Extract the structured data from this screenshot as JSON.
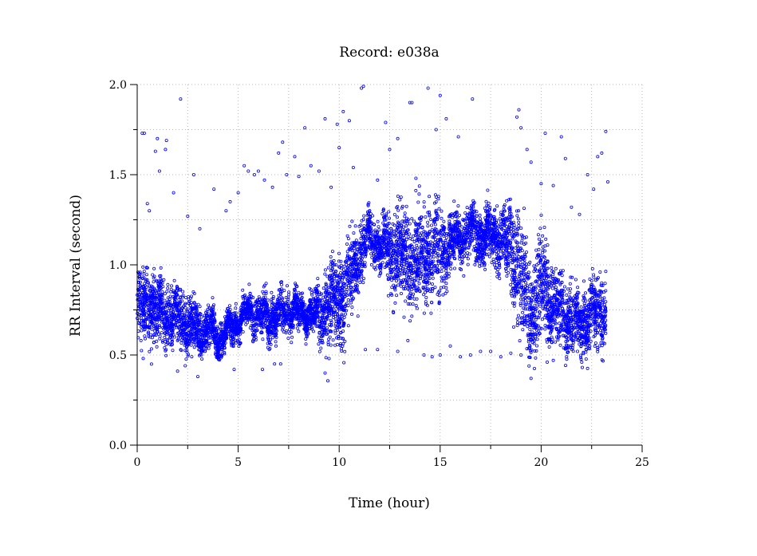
{
  "chart_data": {
    "type": "scatter",
    "title": "Record:  e038a",
    "xlabel": "Time (hour)",
    "ylabel": "RR Interval (second)",
    "xlim": [
      0,
      25
    ],
    "ylim": [
      0,
      2.0
    ],
    "xticks": [
      0,
      5,
      10,
      15,
      20,
      25
    ],
    "xtick_labels": [
      "0",
      "5",
      "10",
      "15",
      "20",
      "25"
    ],
    "yticks": [
      0.0,
      0.5,
      1.0,
      1.5,
      2.0
    ],
    "ytick_labels": [
      "0.0",
      "0.5",
      "1.0",
      "1.5",
      "2.0"
    ],
    "x_minor_ticks": [
      2.5,
      7.5,
      12.5,
      17.5,
      22.5
    ],
    "y_minor_ticks": [
      0.25,
      0.75,
      1.25,
      1.75
    ],
    "grid": true,
    "marker_color": "#0000ff",
    "series": [
      {
        "name": "",
        "trend": {
          "x": [
            0.0,
            0.5,
            1.0,
            1.5,
            2.0,
            2.5,
            3.0,
            3.5,
            4.0,
            4.5,
            5.0,
            5.5,
            6.0,
            6.5,
            7.0,
            7.5,
            8.0,
            8.5,
            9.0,
            9.5,
            10.0,
            10.5,
            11.0,
            11.5,
            12.0,
            12.5,
            13.0,
            13.5,
            14.0,
            14.5,
            15.0,
            15.5,
            16.0,
            16.5,
            17.0,
            17.5,
            18.0,
            18.5,
            19.0,
            19.5,
            20.0,
            20.5,
            21.0,
            21.5,
            22.0,
            22.5,
            23.0,
            23.2
          ],
          "center": [
            0.74,
            0.8,
            0.76,
            0.72,
            0.7,
            0.66,
            0.63,
            0.64,
            0.6,
            0.63,
            0.68,
            0.74,
            0.72,
            0.7,
            0.72,
            0.75,
            0.74,
            0.73,
            0.72,
            0.76,
            0.8,
            0.92,
            1.05,
            1.16,
            1.12,
            1.08,
            1.05,
            1.02,
            1.05,
            1.08,
            1.06,
            1.12,
            1.16,
            1.18,
            1.17,
            1.16,
            1.14,
            1.1,
            0.95,
            0.7,
            0.9,
            0.8,
            0.74,
            0.7,
            0.66,
            0.72,
            0.74,
            0.74
          ],
          "spread": [
            0.12,
            0.14,
            0.12,
            0.11,
            0.1,
            0.1,
            0.08,
            0.08,
            0.07,
            0.06,
            0.06,
            0.06,
            0.07,
            0.08,
            0.08,
            0.07,
            0.06,
            0.06,
            0.1,
            0.16,
            0.16,
            0.16,
            0.12,
            0.08,
            0.08,
            0.14,
            0.17,
            0.17,
            0.16,
            0.16,
            0.16,
            0.1,
            0.09,
            0.09,
            0.09,
            0.09,
            0.09,
            0.16,
            0.22,
            0.18,
            0.2,
            0.14,
            0.12,
            0.12,
            0.12,
            0.12,
            0.12,
            0.12
          ]
        },
        "outliers": [
          {
            "x": 0.25,
            "y": 1.73
          },
          {
            "x": 0.35,
            "y": 1.73
          },
          {
            "x": 0.6,
            "y": 1.3
          },
          {
            "x": 0.9,
            "y": 1.63
          },
          {
            "x": 1.0,
            "y": 1.7
          },
          {
            "x": 1.1,
            "y": 1.52
          },
          {
            "x": 1.4,
            "y": 1.64
          },
          {
            "x": 1.45,
            "y": 1.69
          },
          {
            "x": 2.15,
            "y": 1.92
          },
          {
            "x": 2.8,
            "y": 1.5
          },
          {
            "x": 1.8,
            "y": 1.4
          },
          {
            "x": 0.5,
            "y": 1.34
          },
          {
            "x": 2.5,
            "y": 1.27
          },
          {
            "x": 3.1,
            "y": 1.2
          },
          {
            "x": 3.8,
            "y": 1.42
          },
          {
            "x": 4.4,
            "y": 1.3
          },
          {
            "x": 4.6,
            "y": 1.35
          },
          {
            "x": 5.0,
            "y": 1.4
          },
          {
            "x": 5.3,
            "y": 1.55
          },
          {
            "x": 5.5,
            "y": 1.52
          },
          {
            "x": 5.8,
            "y": 1.5
          },
          {
            "x": 6.0,
            "y": 1.52
          },
          {
            "x": 6.3,
            "y": 1.47
          },
          {
            "x": 6.7,
            "y": 1.43
          },
          {
            "x": 7.0,
            "y": 1.62
          },
          {
            "x": 7.2,
            "y": 1.68
          },
          {
            "x": 7.4,
            "y": 1.5
          },
          {
            "x": 7.8,
            "y": 1.6
          },
          {
            "x": 8.0,
            "y": 1.49
          },
          {
            "x": 8.3,
            "y": 1.76
          },
          {
            "x": 8.6,
            "y": 1.55
          },
          {
            "x": 9.0,
            "y": 1.52
          },
          {
            "x": 9.3,
            "y": 1.81
          },
          {
            "x": 9.6,
            "y": 1.43
          },
          {
            "x": 9.9,
            "y": 1.78
          },
          {
            "x": 10.0,
            "y": 1.65
          },
          {
            "x": 10.2,
            "y": 1.85
          },
          {
            "x": 10.5,
            "y": 1.8
          },
          {
            "x": 10.7,
            "y": 1.54
          },
          {
            "x": 11.1,
            "y": 1.98
          },
          {
            "x": 11.2,
            "y": 1.99
          },
          {
            "x": 11.9,
            "y": 1.47
          },
          {
            "x": 12.3,
            "y": 1.79
          },
          {
            "x": 12.5,
            "y": 1.64
          },
          {
            "x": 12.9,
            "y": 1.7
          },
          {
            "x": 13.5,
            "y": 1.9
          },
          {
            "x": 13.6,
            "y": 1.9
          },
          {
            "x": 13.8,
            "y": 1.48
          },
          {
            "x": 14.4,
            "y": 1.98
          },
          {
            "x": 14.8,
            "y": 1.75
          },
          {
            "x": 15.0,
            "y": 1.94
          },
          {
            "x": 15.3,
            "y": 1.81
          },
          {
            "x": 15.9,
            "y": 1.71
          },
          {
            "x": 16.6,
            "y": 1.92
          },
          {
            "x": 18.8,
            "y": 1.82
          },
          {
            "x": 19.0,
            "y": 1.76
          },
          {
            "x": 18.9,
            "y": 1.86
          },
          {
            "x": 19.3,
            "y": 1.64
          },
          {
            "x": 19.5,
            "y": 1.57
          },
          {
            "x": 20.0,
            "y": 1.45
          },
          {
            "x": 20.2,
            "y": 1.73
          },
          {
            "x": 20.6,
            "y": 1.44
          },
          {
            "x": 21.0,
            "y": 1.71
          },
          {
            "x": 21.2,
            "y": 1.59
          },
          {
            "x": 21.5,
            "y": 1.32
          },
          {
            "x": 21.9,
            "y": 1.28
          },
          {
            "x": 22.3,
            "y": 1.5
          },
          {
            "x": 22.6,
            "y": 1.42
          },
          {
            "x": 22.8,
            "y": 1.6
          },
          {
            "x": 23.0,
            "y": 1.62
          },
          {
            "x": 23.2,
            "y": 1.74
          },
          {
            "x": 23.3,
            "y": 1.46
          },
          {
            "x": 2.0,
            "y": 0.41
          },
          {
            "x": 3.0,
            "y": 0.38
          },
          {
            "x": 4.8,
            "y": 0.42
          },
          {
            "x": 6.2,
            "y": 0.42
          },
          {
            "x": 6.8,
            "y": 0.45
          },
          {
            "x": 7.1,
            "y": 0.45
          },
          {
            "x": 9.3,
            "y": 0.4
          },
          {
            "x": 9.5,
            "y": 0.48
          },
          {
            "x": 11.3,
            "y": 0.53
          },
          {
            "x": 11.9,
            "y": 0.53
          },
          {
            "x": 12.9,
            "y": 0.52
          },
          {
            "x": 13.4,
            "y": 0.58
          },
          {
            "x": 14.2,
            "y": 0.5
          },
          {
            "x": 14.6,
            "y": 0.49
          },
          {
            "x": 15.0,
            "y": 0.5
          },
          {
            "x": 15.5,
            "y": 0.55
          },
          {
            "x": 16.0,
            "y": 0.49
          },
          {
            "x": 16.5,
            "y": 0.5
          },
          {
            "x": 17.0,
            "y": 0.52
          },
          {
            "x": 17.5,
            "y": 0.52
          },
          {
            "x": 18.0,
            "y": 0.49
          },
          {
            "x": 18.5,
            "y": 0.51
          },
          {
            "x": 19.0,
            "y": 0.5
          },
          {
            "x": 19.5,
            "y": 0.37
          },
          {
            "x": 20.3,
            "y": 0.46
          },
          {
            "x": 20.6,
            "y": 0.47
          },
          {
            "x": 21.8,
            "y": 0.52
          },
          {
            "x": 22.4,
            "y": 0.55
          }
        ]
      }
    ]
  }
}
